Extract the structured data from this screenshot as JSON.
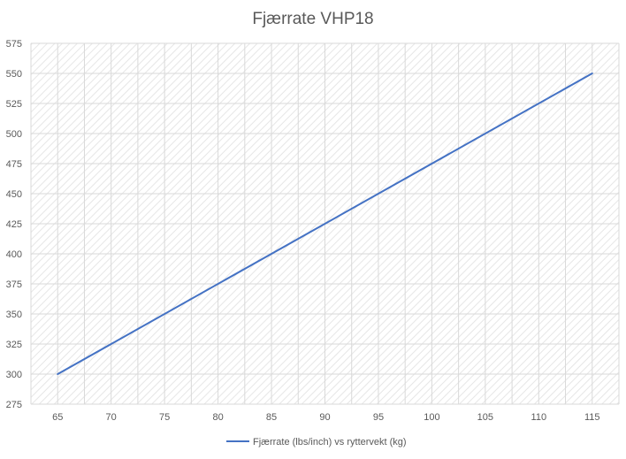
{
  "chart_data": {
    "type": "line",
    "title": "Fjærrate VHP18",
    "x": [
      65,
      115
    ],
    "series": [
      {
        "name": "Fjærrate (lbs/inch) vs ryttervekt (kg)",
        "values": [
          300,
          550
        ],
        "color": "#4472c4"
      }
    ],
    "x_ticks": [
      65,
      70,
      75,
      80,
      85,
      90,
      95,
      100,
      105,
      110,
      115
    ],
    "y_ticks": [
      275,
      300,
      325,
      350,
      375,
      400,
      425,
      450,
      475,
      500,
      525,
      550,
      575
    ],
    "xlim": [
      62.5,
      117.5
    ],
    "ylim": [
      275,
      575
    ],
    "xlabel": "",
    "ylabel": "",
    "grid": true,
    "background": "hatched",
    "legend_position": "bottom"
  }
}
